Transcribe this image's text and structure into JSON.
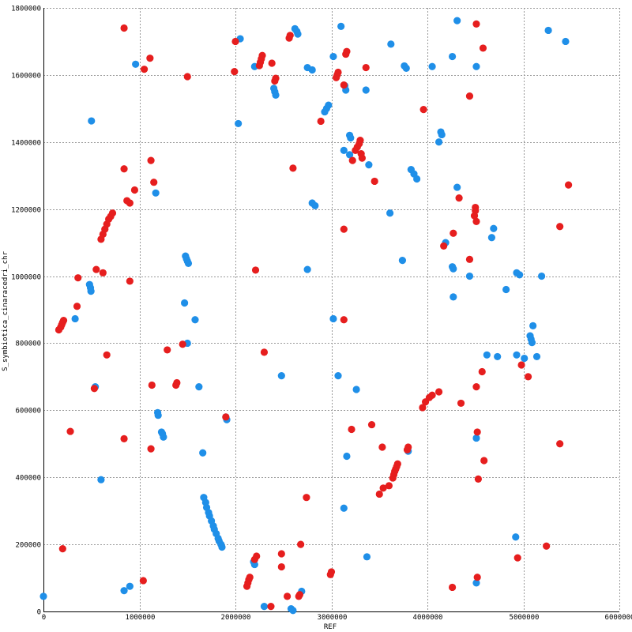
{
  "chart_data": {
    "type": "scatter",
    "xlabel": "REF",
    "ylabel": "S_symbiotica_cinaracedri_chr",
    "xlim": [
      0,
      6000000
    ],
    "ylim": [
      0,
      1800000
    ],
    "x_ticks": [
      0,
      1000000,
      2000000,
      3000000,
      4000000,
      5000000,
      6000000
    ],
    "y_ticks": [
      0,
      200000,
      400000,
      600000,
      800000,
      1000000,
      1200000,
      1400000,
      1600000,
      1800000
    ],
    "grid": true,
    "colors": {
      "forward": "#1f8fe8",
      "reverse": "#e61e1e"
    },
    "series": [
      {
        "color_key": "forward",
        "points": [
          [
            0,
            45000
          ],
          [
            840000,
            62000
          ],
          [
            900000,
            75000
          ],
          [
            960000,
            1632000
          ],
          [
            500000,
            1463000
          ],
          [
            600000,
            393000
          ],
          [
            540000,
            670000
          ],
          [
            330000,
            873000
          ],
          [
            480000,
            975000
          ],
          [
            490000,
            965000
          ],
          [
            495000,
            955000
          ],
          [
            1170000,
            1248000
          ],
          [
            1190000,
            593000
          ],
          [
            1195000,
            585000
          ],
          [
            1230000,
            535000
          ],
          [
            1240000,
            530000
          ],
          [
            1250000,
            520000
          ],
          [
            1480000,
            1060000
          ],
          [
            1490000,
            1052000
          ],
          [
            1500000,
            1045000
          ],
          [
            1510000,
            1038000
          ],
          [
            1470000,
            920000
          ],
          [
            1500000,
            800000
          ],
          [
            1580000,
            870000
          ],
          [
            1620000,
            670000
          ],
          [
            1660000,
            473000
          ],
          [
            1670000,
            340000
          ],
          [
            1690000,
            325000
          ],
          [
            1700000,
            310000
          ],
          [
            1720000,
            295000
          ],
          [
            1730000,
            285000
          ],
          [
            1750000,
            270000
          ],
          [
            1770000,
            255000
          ],
          [
            1780000,
            245000
          ],
          [
            1800000,
            232000
          ],
          [
            1820000,
            218000
          ],
          [
            1830000,
            210000
          ],
          [
            1850000,
            200000
          ],
          [
            1860000,
            192000
          ],
          [
            1900000,
            580000
          ],
          [
            1910000,
            572000
          ],
          [
            2050000,
            1708000
          ],
          [
            2030000,
            1455000
          ],
          [
            2200000,
            1625000
          ],
          [
            2400000,
            1560000
          ],
          [
            2410000,
            1550000
          ],
          [
            2420000,
            1540000
          ],
          [
            2620000,
            1738000
          ],
          [
            2640000,
            1730000
          ],
          [
            2650000,
            1722000
          ],
          [
            2750000,
            1622000
          ],
          [
            2800000,
            1615000
          ],
          [
            2800000,
            1218000
          ],
          [
            2830000,
            1210000
          ],
          [
            2750000,
            1020000
          ],
          [
            2190000,
            148000
          ],
          [
            2200000,
            140000
          ],
          [
            2300000,
            15000
          ],
          [
            2580000,
            8000
          ],
          [
            2600000,
            3000
          ],
          [
            2690000,
            60000
          ],
          [
            2480000,
            703000
          ],
          [
            3100000,
            1745000
          ],
          [
            3020000,
            1655000
          ],
          [
            3140000,
            1568000
          ],
          [
            3150000,
            1555000
          ],
          [
            3360000,
            1555000
          ],
          [
            2930000,
            1490000
          ],
          [
            2950000,
            1500000
          ],
          [
            2970000,
            1510000
          ],
          [
            3190000,
            1420000
          ],
          [
            3200000,
            1412000
          ],
          [
            3130000,
            1375000
          ],
          [
            3190000,
            1362000
          ],
          [
            3390000,
            1332000
          ],
          [
            3020000,
            873000
          ],
          [
            3070000,
            703000
          ],
          [
            3130000,
            308000
          ],
          [
            3160000,
            463000
          ],
          [
            3260000,
            662000
          ],
          [
            3370000,
            163000
          ],
          [
            3620000,
            1692000
          ],
          [
            3760000,
            1627000
          ],
          [
            3780000,
            1620000
          ],
          [
            3610000,
            1188000
          ],
          [
            3740000,
            1047000
          ],
          [
            3830000,
            1318000
          ],
          [
            3860000,
            1305000
          ],
          [
            3890000,
            1290000
          ],
          [
            3800000,
            478000
          ],
          [
            4050000,
            1625000
          ],
          [
            4140000,
            1430000
          ],
          [
            4150000,
            1422000
          ],
          [
            4120000,
            1400000
          ],
          [
            4310000,
            1762000
          ],
          [
            4260000,
            1655000
          ],
          [
            4510000,
            1625000
          ],
          [
            4310000,
            1265000
          ],
          [
            4190000,
            1100000
          ],
          [
            4260000,
            1028000
          ],
          [
            4270000,
            1022000
          ],
          [
            4270000,
            938000
          ],
          [
            4440000,
            1000000
          ],
          [
            4510000,
            517000
          ],
          [
            4510000,
            85000
          ],
          [
            4690000,
            1142000
          ],
          [
            4670000,
            1115000
          ],
          [
            4620000,
            765000
          ],
          [
            4730000,
            760000
          ],
          [
            4820000,
            960000
          ],
          [
            4930000,
            1010000
          ],
          [
            4960000,
            1004000
          ],
          [
            4930000,
            765000
          ],
          [
            5010000,
            755000
          ],
          [
            5070000,
            822000
          ],
          [
            5080000,
            812000
          ],
          [
            5090000,
            802000
          ],
          [
            5100000,
            852000
          ],
          [
            5140000,
            760000
          ],
          [
            5190000,
            1000000
          ],
          [
            5260000,
            1733000
          ],
          [
            5440000,
            1700000
          ],
          [
            4920000,
            222000
          ]
        ]
      },
      {
        "color_key": "reverse",
        "points": [
          [
            840000,
            1740000
          ],
          [
            1110000,
            1650000
          ],
          [
            1050000,
            1617000
          ],
          [
            1500000,
            1595000
          ],
          [
            1120000,
            1345000
          ],
          [
            1150000,
            1280000
          ],
          [
            840000,
            1320000
          ],
          [
            870000,
            1225000
          ],
          [
            900000,
            1218000
          ],
          [
            950000,
            1257000
          ],
          [
            620000,
            1010000
          ],
          [
            550000,
            1020000
          ],
          [
            360000,
            995000
          ],
          [
            900000,
            985000
          ],
          [
            350000,
            910000
          ],
          [
            160000,
            840000
          ],
          [
            180000,
            848000
          ],
          [
            190000,
            855000
          ],
          [
            200000,
            862000
          ],
          [
            210000,
            868000
          ],
          [
            660000,
            765000
          ],
          [
            530000,
            665000
          ],
          [
            280000,
            537000
          ],
          [
            840000,
            515000
          ],
          [
            1120000,
            485000
          ],
          [
            1130000,
            675000
          ],
          [
            1040000,
            92000
          ],
          [
            200000,
            187000
          ],
          [
            600000,
            1110000
          ],
          [
            620000,
            1125000
          ],
          [
            640000,
            1140000
          ],
          [
            660000,
            1155000
          ],
          [
            680000,
            1170000
          ],
          [
            700000,
            1178000
          ],
          [
            720000,
            1188000
          ],
          [
            1290000,
            780000
          ],
          [
            1380000,
            675000
          ],
          [
            1390000,
            682000
          ],
          [
            1450000,
            797000
          ],
          [
            1900000,
            580000
          ],
          [
            2000000,
            1700000
          ],
          [
            1990000,
            1610000
          ],
          [
            2210000,
            1018000
          ],
          [
            2300000,
            773000
          ],
          [
            2250000,
            1628000
          ],
          [
            2260000,
            1638000
          ],
          [
            2270000,
            1648000
          ],
          [
            2280000,
            1658000
          ],
          [
            2380000,
            1635000
          ],
          [
            2420000,
            1590000
          ],
          [
            2410000,
            1582000
          ],
          [
            2560000,
            1710000
          ],
          [
            2570000,
            1718000
          ],
          [
            2600000,
            1322000
          ],
          [
            2120000,
            75000
          ],
          [
            2130000,
            85000
          ],
          [
            2140000,
            95000
          ],
          [
            2150000,
            102000
          ],
          [
            2200000,
            155000
          ],
          [
            2220000,
            165000
          ],
          [
            2370000,
            15000
          ],
          [
            2480000,
            172000
          ],
          [
            2480000,
            133000
          ],
          [
            2540000,
            45000
          ],
          [
            2660000,
            45000
          ],
          [
            2670000,
            50000
          ],
          [
            2680000,
            200000
          ],
          [
            2740000,
            340000
          ],
          [
            2990000,
            110000
          ],
          [
            3000000,
            118000
          ],
          [
            3050000,
            1592000
          ],
          [
            3060000,
            1600000
          ],
          [
            3070000,
            1608000
          ],
          [
            3130000,
            1570000
          ],
          [
            3150000,
            1662000
          ],
          [
            3160000,
            1670000
          ],
          [
            2890000,
            1462000
          ],
          [
            3360000,
            1622000
          ],
          [
            3250000,
            1375000
          ],
          [
            3270000,
            1385000
          ],
          [
            3290000,
            1395000
          ],
          [
            3300000,
            1405000
          ],
          [
            3310000,
            1365000
          ],
          [
            3320000,
            1352000
          ],
          [
            3220000,
            1345000
          ],
          [
            3450000,
            1283000
          ],
          [
            3130000,
            1140000
          ],
          [
            3130000,
            870000
          ],
          [
            3210000,
            543000
          ],
          [
            3420000,
            557000
          ],
          [
            3500000,
            350000
          ],
          [
            3540000,
            368000
          ],
          [
            3600000,
            375000
          ],
          [
            3640000,
            398000
          ],
          [
            3650000,
            408000
          ],
          [
            3660000,
            418000
          ],
          [
            3670000,
            425000
          ],
          [
            3680000,
            432000
          ],
          [
            3690000,
            440000
          ],
          [
            3530000,
            490000
          ],
          [
            3790000,
            482000
          ],
          [
            3800000,
            490000
          ],
          [
            3950000,
            608000
          ],
          [
            3980000,
            625000
          ],
          [
            4020000,
            638000
          ],
          [
            4050000,
            645000
          ],
          [
            4120000,
            655000
          ],
          [
            3960000,
            1497000
          ],
          [
            4440000,
            1537000
          ],
          [
            4510000,
            1752000
          ],
          [
            4580000,
            1680000
          ],
          [
            4330000,
            1233000
          ],
          [
            4500000,
            1205000
          ],
          [
            4500000,
            1195000
          ],
          [
            4490000,
            1180000
          ],
          [
            4510000,
            1163000
          ],
          [
            4170000,
            1090000
          ],
          [
            4270000,
            1128000
          ],
          [
            4440000,
            1050000
          ],
          [
            4350000,
            621000
          ],
          [
            4570000,
            715000
          ],
          [
            4510000,
            670000
          ],
          [
            4520000,
            535000
          ],
          [
            4590000,
            450000
          ],
          [
            4530000,
            395000
          ],
          [
            4260000,
            72000
          ],
          [
            4520000,
            102000
          ],
          [
            4980000,
            735000
          ],
          [
            5050000,
            700000
          ],
          [
            4940000,
            160000
          ],
          [
            5240000,
            195000
          ],
          [
            5380000,
            1148000
          ],
          [
            5470000,
            1272000
          ],
          [
            5380000,
            500000
          ]
        ]
      }
    ]
  }
}
